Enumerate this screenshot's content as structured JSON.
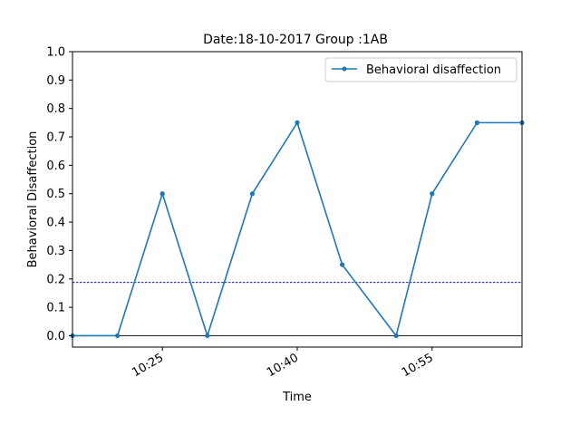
{
  "chart_data": {
    "type": "line",
    "title": "Date:18-10-2017 Group :1AB",
    "xlabel": "Time",
    "ylabel": "Behavioral Disaffection",
    "x_unit": "time of day",
    "xlim": [
      "10:15",
      "10:65"
    ],
    "ylim": [
      -0.04,
      1.0
    ],
    "x_ticks": [
      "10:25",
      "10:40",
      "10:55"
    ],
    "y_ticks": [
      "0.0",
      "0.1",
      "0.2",
      "0.3",
      "0.4",
      "0.5",
      "0.6",
      "0.7",
      "0.8",
      "0.9",
      "1.0"
    ],
    "grid": false,
    "legend_position": "top-right",
    "series": [
      {
        "name": "Behavioral disaffection",
        "color": "#1f77b4",
        "points": [
          {
            "x": "10:15",
            "y": 0.0
          },
          {
            "x": "10:20",
            "y": 0.0
          },
          {
            "x": "10:25",
            "y": 0.5
          },
          {
            "x": "10:30",
            "y": 0.0
          },
          {
            "x": "10:35",
            "y": 0.5
          },
          {
            "x": "10:40",
            "y": 0.75
          },
          {
            "x": "10:45",
            "y": 0.25
          },
          {
            "x": "10:51",
            "y": 0.0
          },
          {
            "x": "10:55",
            "y": 0.5
          },
          {
            "x": "10:60",
            "y": 0.75
          },
          {
            "x": "10:65",
            "y": 0.75
          }
        ]
      }
    ],
    "reference_lines": [
      {
        "y": 0.0,
        "style": "solid",
        "color": "#000000"
      },
      {
        "y": 0.1875,
        "style": "dashed",
        "color": "#00008b"
      }
    ]
  }
}
